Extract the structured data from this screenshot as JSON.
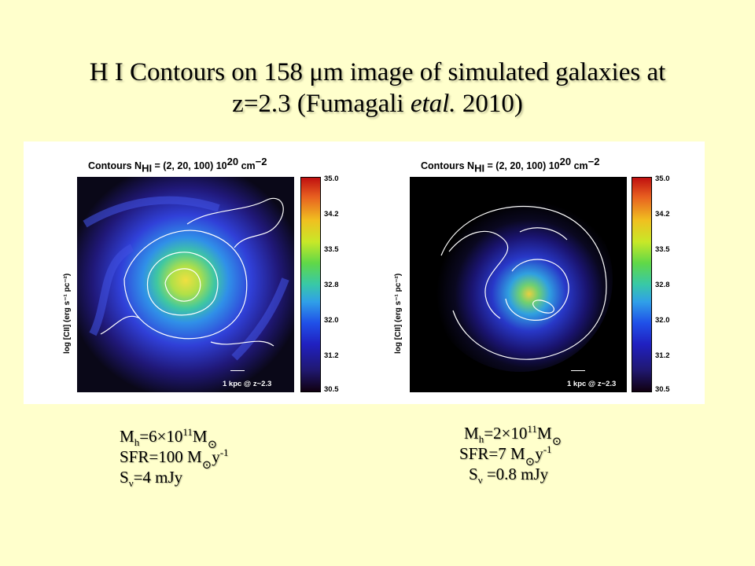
{
  "slide": {
    "title_line1": "H I Contours on 158 μm image of simulated galaxies at",
    "title_line2_pre": "z=2.3 (Fumagali ",
    "title_line2_em": "etal.",
    "title_line2_post": " 2010)"
  },
  "panels": [
    {
      "title": "Contours N",
      "title_sub": "HI",
      "title_rest": " = (2, 20, 100) 10",
      "title_sup": "20",
      "title_unit": " cm",
      "title_unit_sup": "−2",
      "ylabel": "log [CII] (erg s⁻¹ pc⁻²)",
      "scale_label": "1 kpc @ z~2.3",
      "colorbar_ticks": [
        "35.0",
        "34.2",
        "33.5",
        "32.8",
        "32.0",
        "31.2",
        "30.5"
      ]
    },
    {
      "title": "Contours N",
      "title_sub": "HI",
      "title_rest": " = (2, 20, 100) 10",
      "title_sup": "20",
      "title_unit": " cm",
      "title_unit_sup": "−2",
      "ylabel": "log [CII] (erg s⁻¹ pc⁻²)",
      "scale_label": "1 kpc @ z~2.3",
      "colorbar_ticks": [
        "35.0",
        "34.2",
        "33.5",
        "32.8",
        "32.0",
        "31.2",
        "30.5"
      ]
    }
  ],
  "left_props": {
    "mh_pre": "M",
    "mh_sub": "h",
    "mh_mid": "=6×10",
    "mh_sup": "11",
    "mh_post": "M",
    "sfr_pre": "SFR=100 M",
    "sfr_post": "y",
    "sfr_sup": "-1",
    "s_pre": "S",
    "s_sub": "ν",
    "s_post": "=4 mJy"
  },
  "right_props": {
    "mh_pre": "M",
    "mh_sub": "h",
    "mh_mid": "=2×10",
    "mh_sup": "11",
    "mh_post": "M",
    "sfr_pre": "SFR=7 M",
    "sfr_post": "y",
    "sfr_sup": "-1",
    "s_pre": "S",
    "s_sub": "ν",
    "s_post": " =0.8 mJy"
  },
  "sun_symbol": "⊙",
  "colors": {
    "background": "#ffffcc",
    "figure_bg": "#ffffff"
  }
}
